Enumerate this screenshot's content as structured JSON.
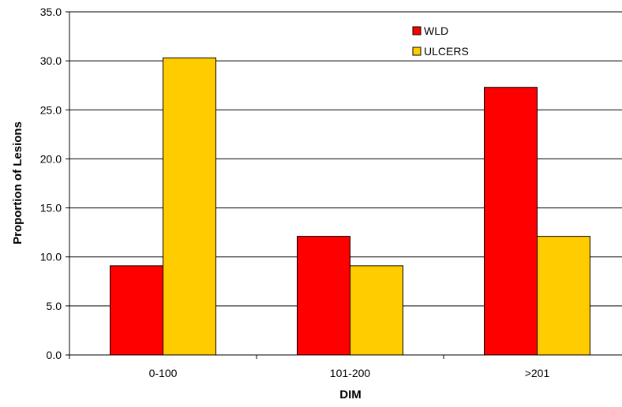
{
  "chart_data": {
    "type": "bar",
    "title": "",
    "xlabel": "DIM",
    "ylabel": "Proportion of Lesions",
    "categories": [
      "0-100",
      "101-200",
      ">201"
    ],
    "series": [
      {
        "name": "WLD",
        "values": [
          9.1,
          12.1,
          27.3
        ],
        "color": "#ff0000"
      },
      {
        "name": "ULCERS",
        "values": [
          30.3,
          9.1,
          12.1
        ],
        "color": "#ffcc00"
      }
    ],
    "ylim": [
      0,
      35
    ],
    "yticks": [
      "0.0",
      "5.0",
      "10.0",
      "15.0",
      "20.0",
      "25.0",
      "30.0",
      "35.0"
    ],
    "grid": true,
    "legend": "top-right"
  }
}
